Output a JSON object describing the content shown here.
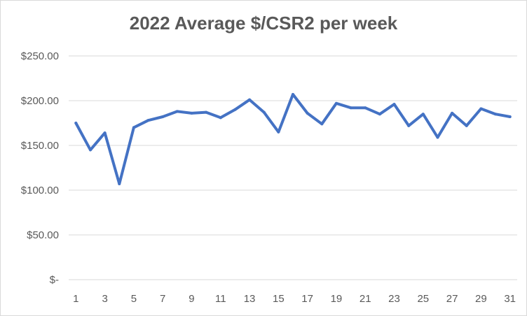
{
  "chart_data": {
    "type": "line",
    "title": "2022 Average $/CSR2 per week",
    "xlabel": "",
    "ylabel": "",
    "ylim": [
      0,
      250
    ],
    "yticks": [
      0,
      50,
      100,
      150,
      200,
      250
    ],
    "ytick_labels": [
      "$-",
      "$50.00",
      "$100.00",
      "$150.00",
      "$200.00",
      "$250.00"
    ],
    "xtick_labels": [
      "1",
      "3",
      "5",
      "7",
      "9",
      "11",
      "13",
      "15",
      "17",
      "19",
      "21",
      "23",
      "25",
      "27",
      "29",
      "31"
    ],
    "grid": true,
    "legend": "none",
    "line_color": "#4472c4",
    "x": [
      1,
      2,
      3,
      4,
      5,
      6,
      7,
      8,
      9,
      10,
      11,
      12,
      13,
      14,
      15,
      16,
      17,
      18,
      19,
      20,
      21,
      22,
      23,
      24,
      25,
      26,
      27,
      28,
      29,
      30,
      31
    ],
    "series": [
      {
        "values": [
          175,
          145,
          164,
          107,
          170,
          178,
          182,
          188,
          186,
          187,
          181,
          190,
          201,
          187,
          165,
          207,
          186,
          174,
          197,
          192,
          192,
          185,
          196,
          172,
          185,
          159,
          186,
          172,
          191,
          185,
          182
        ]
      }
    ]
  }
}
